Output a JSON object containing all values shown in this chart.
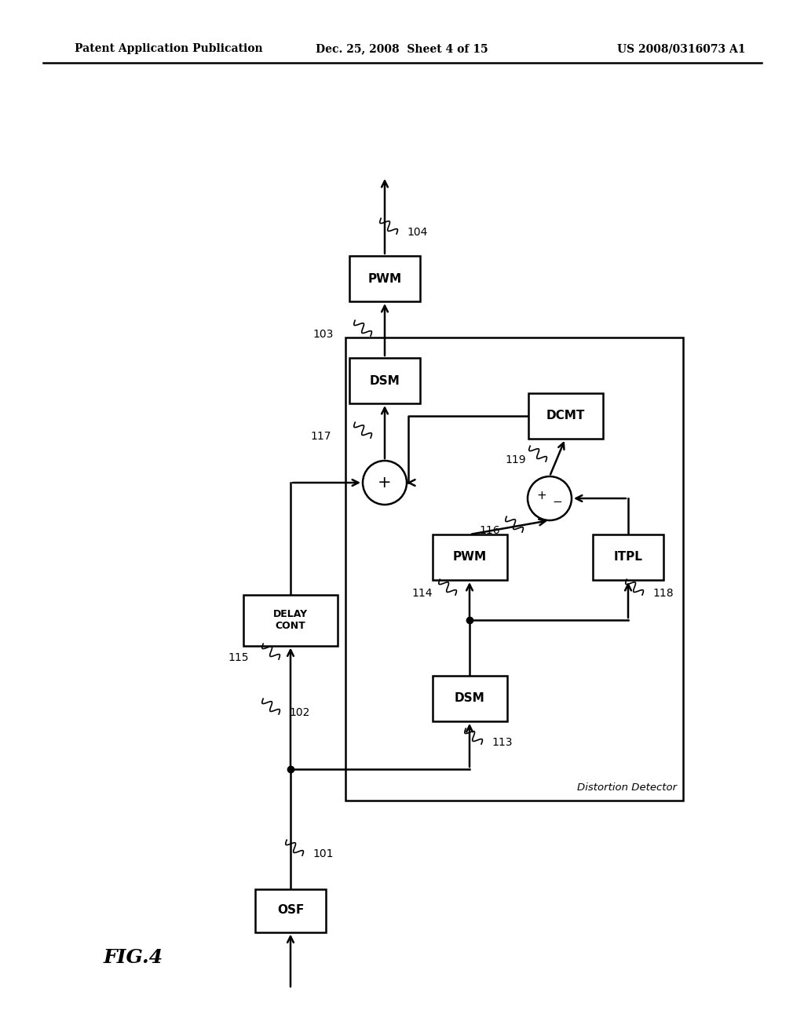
{
  "fig_width": 10.24,
  "fig_height": 13.2,
  "bg_color": "#ffffff",
  "header_left": "Patent Application Publication",
  "header_center": "Dec. 25, 2008  Sheet 4 of 15",
  "header_right": "US 2008/0316073 A1",
  "fig_label": "FIG.4"
}
